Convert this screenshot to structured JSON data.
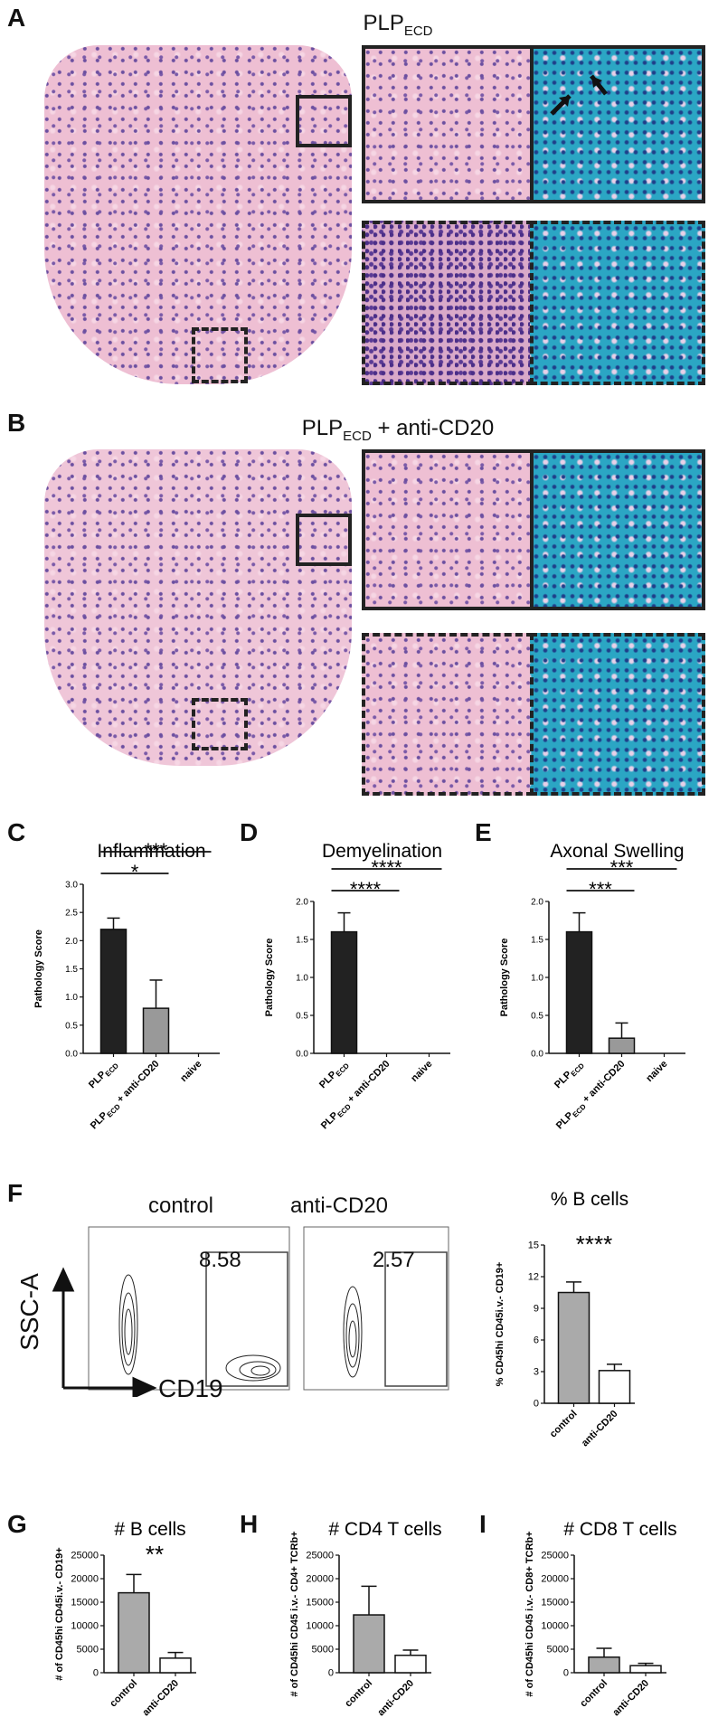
{
  "panels": {
    "A": {
      "letter": "A",
      "title_main": "PLP",
      "title_sub": "ECD",
      "title_rest": ""
    },
    "B": {
      "letter": "B",
      "title_main": "PLP",
      "title_sub": "ECD",
      "title_rest": " + anti-CD20"
    },
    "C": {
      "letter": "C"
    },
    "D": {
      "letter": "D"
    },
    "E": {
      "letter": "E"
    },
    "F": {
      "letter": "F"
    },
    "G": {
      "letter": "G"
    },
    "H": {
      "letter": "H"
    },
    "I": {
      "letter": "I"
    }
  },
  "flow": {
    "control_label": "control",
    "anticd20_label": "anti-CD20",
    "control_gate_value": "8.58",
    "anticd20_gate_value": "2.57",
    "y_axis": "SSC-A",
    "x_axis": "CD19"
  },
  "colors": {
    "dark": "#222222",
    "gray": "#999999",
    "white": "#ffffff"
  },
  "chart_data": [
    {
      "id": "C",
      "type": "bar",
      "title": "Inflammation",
      "ylabel": "Pathology Score",
      "categories": [
        "PLPECD",
        "PLPECD + anti-CD20",
        "naive"
      ],
      "values": [
        2.2,
        0.8,
        0
      ],
      "errors": [
        0.2,
        0.5,
        0
      ],
      "ylim": [
        0,
        3.0
      ],
      "yticks": [
        "0.0",
        "0.5",
        "1.0",
        "1.5",
        "2.0",
        "2.5",
        "3.0"
      ],
      "significance": [
        {
          "label": "*",
          "from": 0,
          "to": 1
        },
        {
          "label": "***",
          "from": 0,
          "to": 2
        }
      ]
    },
    {
      "id": "D",
      "type": "bar",
      "title": "Demyelination",
      "ylabel": "Pathology Score",
      "categories": [
        "PLPECD",
        "PLPECD + anti-CD20",
        "naive"
      ],
      "values": [
        1.6,
        0,
        0
      ],
      "errors": [
        0.25,
        0,
        0
      ],
      "ylim": [
        0,
        2.0
      ],
      "yticks": [
        "0.0",
        "0.5",
        "1.0",
        "1.5",
        "2.0"
      ],
      "significance": [
        {
          "label": "****",
          "from": 0,
          "to": 1
        },
        {
          "label": "****",
          "from": 0,
          "to": 2
        }
      ]
    },
    {
      "id": "E",
      "type": "bar",
      "title": "Axonal Swelling",
      "ylabel": "Pathology Score",
      "categories": [
        "PLPECD",
        "PLPECD + anti-CD20",
        "naive"
      ],
      "values": [
        1.6,
        0.2,
        0
      ],
      "errors": [
        0.25,
        0.2,
        0
      ],
      "ylim": [
        0,
        2.0
      ],
      "yticks": [
        "0.0",
        "0.5",
        "1.0",
        "1.5",
        "2.0"
      ],
      "significance": [
        {
          "label": "***",
          "from": 0,
          "to": 1
        },
        {
          "label": "***",
          "from": 0,
          "to": 2
        }
      ]
    },
    {
      "id": "F",
      "type": "bar",
      "title": "% B cells",
      "ylabel": "% CD45hi CD45i.v.- CD19+",
      "categories": [
        "control",
        "anti-CD20"
      ],
      "values": [
        10.5,
        3.1
      ],
      "errors": [
        1.0,
        0.6
      ],
      "ylim": [
        0,
        15
      ],
      "yticks": [
        "0",
        "3",
        "6",
        "9",
        "12",
        "15"
      ],
      "significance": [
        {
          "label": "****",
          "over": true
        }
      ]
    },
    {
      "id": "G",
      "type": "bar",
      "title": "# B cells",
      "ylabel": "# of CD45hi CD45i.v.- CD19+",
      "categories": [
        "control",
        "anti-CD20"
      ],
      "values": [
        17000,
        3100
      ],
      "errors": [
        3900,
        1200
      ],
      "ylim": [
        0,
        25000
      ],
      "yticks": [
        "0",
        "5000",
        "10000",
        "15000",
        "20000",
        "25000"
      ],
      "significance": [
        {
          "label": "**",
          "over": true
        }
      ]
    },
    {
      "id": "H",
      "type": "bar",
      "title": "# CD4 T cells",
      "ylabel": "# of CD45hi CD45 i.v.- CD4+ TCRb+",
      "categories": [
        "control",
        "anti-CD20"
      ],
      "values": [
        12300,
        3700
      ],
      "errors": [
        6100,
        1100
      ],
      "ylim": [
        0,
        25000
      ],
      "yticks": [
        "0",
        "5000",
        "10000",
        "15000",
        "20000",
        "25000"
      ],
      "significance": []
    },
    {
      "id": "I",
      "type": "bar",
      "title": "# CD8 T cells",
      "ylabel": "# of CD45hi CD45 i.v.- CD8+ TCRb+",
      "categories": [
        "control",
        "anti-CD20"
      ],
      "values": [
        3300,
        1500
      ],
      "errors": [
        1900,
        500
      ],
      "ylim": [
        0,
        25000
      ],
      "yticks": [
        "0",
        "5000",
        "10000",
        "15000",
        "20000",
        "25000"
      ],
      "significance": []
    }
  ]
}
